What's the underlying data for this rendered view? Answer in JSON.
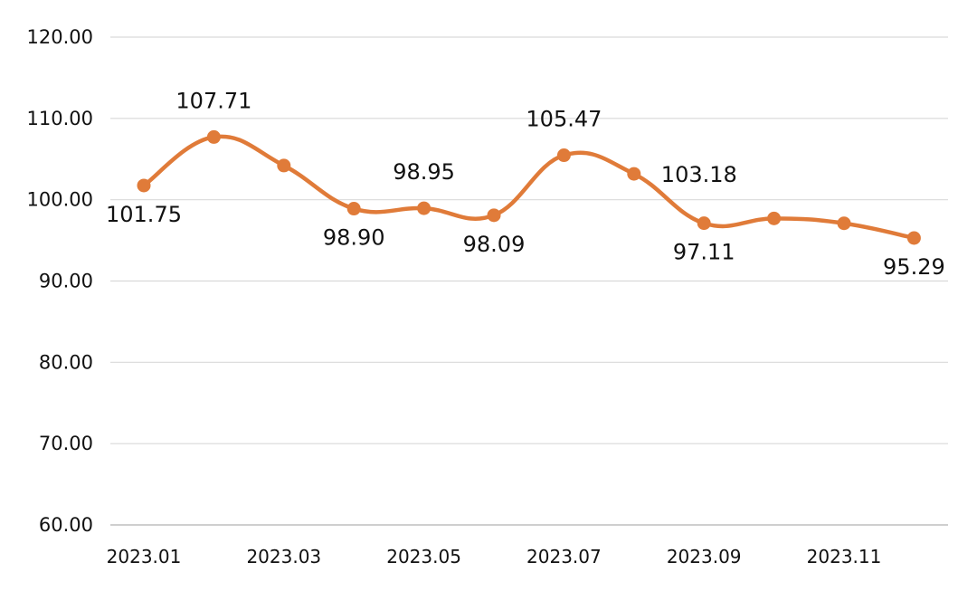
{
  "chart_data": {
    "type": "line",
    "title": "",
    "xlabel": "",
    "ylabel": "",
    "ylim": [
      60,
      120
    ],
    "yticks": [
      "60.00",
      "70.00",
      "80.00",
      "90.00",
      "100.00",
      "110.00",
      "120.00"
    ],
    "xtick_labels": [
      "2023.01",
      "2023.03",
      "2023.05",
      "2023.07",
      "2023.09",
      "2023.11"
    ],
    "grid": true,
    "legend": "none",
    "line_color": "#e07b39",
    "x": [
      "2023.01",
      "2023.02",
      "2023.03",
      "2023.04",
      "2023.05",
      "2023.06",
      "2023.07",
      "2023.08",
      "2023.09",
      "2023.10",
      "2023.11",
      "2023.12"
    ],
    "series": [
      {
        "values": [
          101.75,
          107.71,
          104.2,
          98.9,
          98.95,
          98.09,
          105.47,
          103.18,
          97.11,
          97.7,
          97.1,
          95.29
        ]
      }
    ],
    "data_labels": [
      {
        "index": 0,
        "text": "101.75",
        "position": "below"
      },
      {
        "index": 1,
        "text": "107.71",
        "position": "above"
      },
      {
        "index": 3,
        "text": "98.90",
        "position": "below"
      },
      {
        "index": 4,
        "text": "98.95",
        "position": "above"
      },
      {
        "index": 5,
        "text": "98.09",
        "position": "below"
      },
      {
        "index": 6,
        "text": "105.47",
        "position": "above"
      },
      {
        "index": 7,
        "text": "103.18",
        "position": "right"
      },
      {
        "index": 8,
        "text": "97.11",
        "position": "below"
      },
      {
        "index": 11,
        "text": "95.29",
        "position": "below"
      }
    ]
  }
}
